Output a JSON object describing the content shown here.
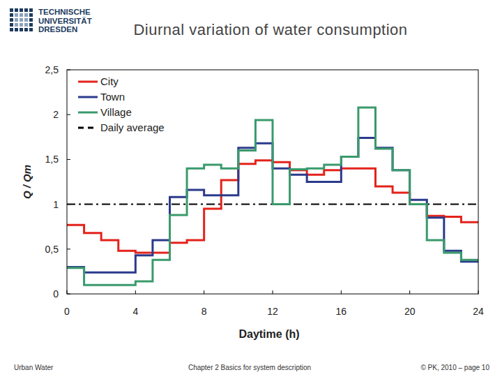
{
  "slide": {
    "logo": [
      "TECHNISCHE",
      "UNIVERSITÄT",
      "DRESDEN"
    ],
    "footer_left": "Urban Water",
    "footer_center": "Chapter 2  Basics for system description",
    "footer_right": "© PK, 2010 – page 10"
  },
  "chart_data": {
    "type": "step",
    "title": "Diurnal variation of water consumption",
    "x_label": "Daytime  (h)",
    "y_label": "Q / Qm",
    "x": [
      0,
      1,
      2,
      3,
      4,
      5,
      6,
      7,
      8,
      9,
      10,
      11,
      12,
      13,
      14,
      15,
      16,
      17,
      18,
      19,
      20,
      21,
      22,
      23
    ],
    "series": [
      {
        "name": "City",
        "color": "#e3231b",
        "values": [
          0.77,
          0.68,
          0.6,
          0.48,
          0.46,
          0.46,
          0.57,
          0.6,
          0.95,
          1.27,
          1.45,
          1.49,
          1.47,
          1.38,
          1.33,
          1.38,
          1.4,
          1.4,
          1.2,
          1.13,
          1.0,
          0.87,
          0.86,
          0.8
        ]
      },
      {
        "name": "Town",
        "color": "#2b3a8c",
        "values": [
          0.3,
          0.24,
          0.24,
          0.24,
          0.43,
          0.6,
          1.08,
          1.16,
          1.1,
          1.1,
          1.63,
          1.68,
          1.4,
          1.33,
          1.25,
          1.25,
          1.53,
          1.74,
          1.63,
          1.38,
          1.05,
          0.85,
          0.48,
          0.36
        ]
      },
      {
        "name": "Village",
        "color": "#3a9a6c",
        "values": [
          0.29,
          0.1,
          0.1,
          0.1,
          0.14,
          0.38,
          0.88,
          1.4,
          1.44,
          1.4,
          1.6,
          1.94,
          1.0,
          1.39,
          1.4,
          1.44,
          1.53,
          2.08,
          1.62,
          1.38,
          1.0,
          0.6,
          0.46,
          0.38
        ]
      }
    ],
    "reference_line": {
      "name": "Daily average",
      "value": 1,
      "color": "#000000",
      "line_style": "dashdot"
    },
    "xlim": [
      0,
      24
    ],
    "xticks": [
      0,
      4,
      8,
      12,
      16,
      20,
      24
    ],
    "ylim": [
      0,
      2.5
    ],
    "yticks": [
      0,
      {
        "value": 0.5,
        "label": "0,5"
      },
      1,
      {
        "value": 1.5,
        "label": "1,5"
      },
      2,
      {
        "value": 2.5,
        "label": "2,5"
      }
    ],
    "grid": false,
    "legend": "upper left"
  }
}
